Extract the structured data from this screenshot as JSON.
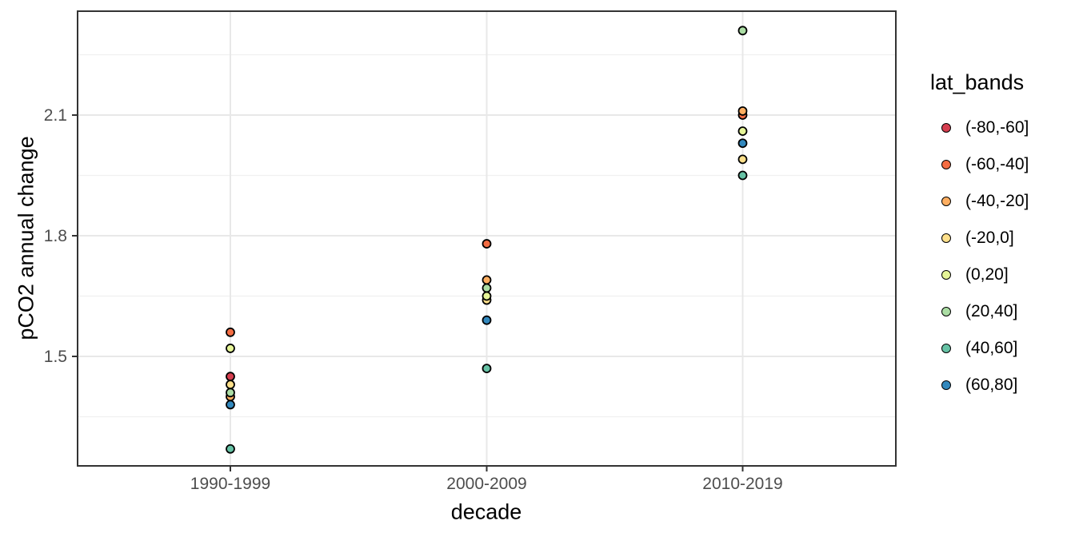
{
  "chart_data": {
    "type": "scatter",
    "title": "",
    "xlabel": "decade",
    "ylabel": "pCO2 annual change",
    "categories": [
      "1990-1999",
      "2000-2009",
      "2010-2019"
    ],
    "y_ticks": [
      1.5,
      1.8,
      2.1
    ],
    "y_minor_ticks": [
      1.35,
      1.65,
      1.95,
      2.25
    ],
    "ylim": [
      1.23,
      2.36
    ],
    "grid": true,
    "legend_title": "lat_bands",
    "legend_position": "right",
    "series": [
      {
        "name": "(-80,-60]",
        "color": "#D53E4F",
        "values": [
          1.45,
          null,
          null
        ]
      },
      {
        "name": "(-60,-40]",
        "color": "#F46D43",
        "values": [
          1.56,
          1.78,
          2.1
        ]
      },
      {
        "name": "(-40,-20]",
        "color": "#FDAE61",
        "values": [
          1.4,
          1.69,
          2.11
        ]
      },
      {
        "name": "(-20,0]",
        "color": "#FEE08B",
        "values": [
          1.43,
          1.64,
          1.99
        ]
      },
      {
        "name": "(0,20]",
        "color": "#E6F598",
        "values": [
          1.52,
          1.65,
          2.06
        ]
      },
      {
        "name": "(20,40]",
        "color": "#ABDDA4",
        "values": [
          1.41,
          1.67,
          2.31
        ]
      },
      {
        "name": "(40,60]",
        "color": "#66C2A5",
        "values": [
          1.27,
          1.47,
          1.95
        ]
      },
      {
        "name": "(60,80]",
        "color": "#3288BD",
        "values": [
          1.38,
          1.59,
          2.03
        ]
      }
    ],
    "colors": {
      "background": "#ffffff",
      "grid_major": "#e8e8e8",
      "grid_minor": "#f0f0f0",
      "panel_border": "#333333",
      "axis_text": "#4d4d4d",
      "point_outline": "#000000"
    }
  }
}
